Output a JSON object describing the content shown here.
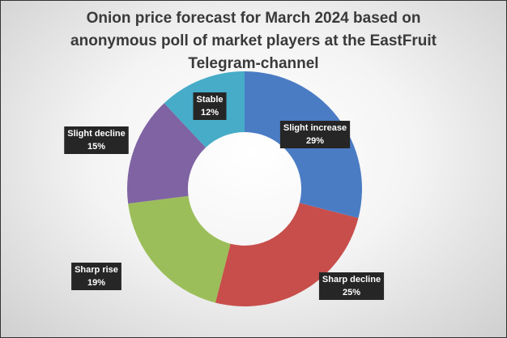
{
  "chart_data": {
    "type": "donut",
    "title": "Onion price forecast for March 2024 based on anonymous poll of market players at the EastFruit Telegram-channel",
    "categories": [
      "Slight increase",
      "Sharp decline",
      "Sharp rise",
      "Slight decline",
      "Stable"
    ],
    "values": [
      29,
      25,
      19,
      15,
      12
    ],
    "value_labels": [
      "29%",
      "25%",
      "19%",
      "15%",
      "12%"
    ],
    "colors": [
      "#4a7cc4",
      "#c84e4b",
      "#9bbe5a",
      "#7f63a3",
      "#46acc8"
    ]
  }
}
